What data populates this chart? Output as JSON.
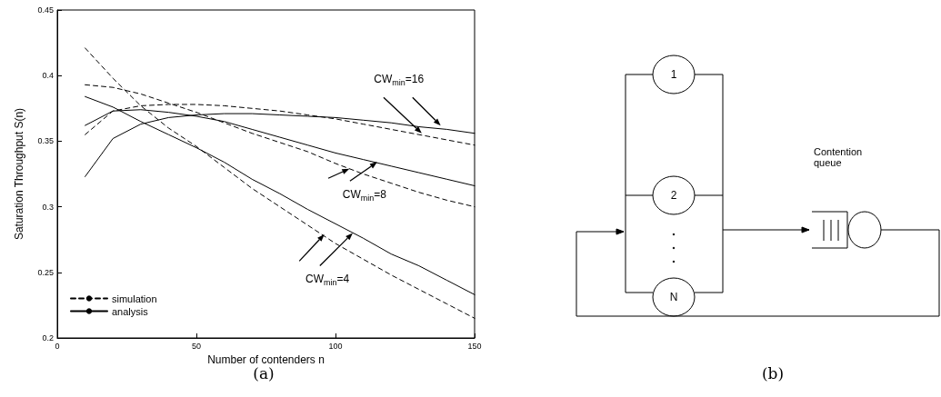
{
  "chart_data": [
    {
      "type": "line",
      "xlabel": "Number of contenders n",
      "ylabel": "Saturation Throughput S(n)",
      "x": [
        10,
        20,
        30,
        40,
        50,
        60,
        70,
        80,
        90,
        100,
        110,
        120,
        130,
        140,
        150
      ],
      "series": [
        {
          "name": "simulation",
          "color": "#000000",
          "line_style": "dashed",
          "values": [
            0.421,
            0.398,
            0.377,
            0.36,
            0.346,
            0.33,
            0.314,
            0.3,
            0.286,
            0.272,
            0.26,
            0.248,
            0.237,
            0.226,
            0.215
          ]
        },
        {
          "name": "analysis",
          "color": "#000000",
          "line_style": "solid",
          "values": [
            0.384,
            0.376,
            0.365,
            0.355,
            0.345,
            0.334,
            0.321,
            0.31,
            0.298,
            0.287,
            0.276,
            0.264,
            0.255,
            0.244,
            0.233
          ]
        },
        {
          "color": "#000000",
          "line_style": "dashed",
          "values": [
            0.393,
            0.391,
            0.386,
            0.379,
            0.372,
            0.364,
            0.356,
            0.349,
            0.342,
            0.333,
            0.325,
            0.318,
            0.311,
            0.305,
            0.3
          ]
        },
        {
          "color": "#000000",
          "line_style": "solid",
          "values": [
            0.362,
            0.373,
            0.374,
            0.372,
            0.369,
            0.365,
            0.359,
            0.353,
            0.347,
            0.341,
            0.336,
            0.331,
            0.326,
            0.321,
            0.316
          ]
        },
        {
          "color": "#000000",
          "line_style": "dashed",
          "values": [
            0.355,
            0.373,
            0.377,
            0.378,
            0.378,
            0.377,
            0.375,
            0.373,
            0.37,
            0.367,
            0.363,
            0.359,
            0.355,
            0.351,
            0.347
          ]
        },
        {
          "color": "#000000",
          "line_style": "solid",
          "values": [
            0.323,
            0.352,
            0.363,
            0.368,
            0.37,
            0.371,
            0.371,
            0.37,
            0.369,
            0.368,
            0.366,
            0.364,
            0.361,
            0.359,
            0.356
          ]
        }
      ],
      "xlim": [
        0,
        150
      ],
      "xticks": [
        0,
        50,
        100,
        150
      ],
      "ylim": [
        0.2,
        0.45
      ],
      "yticks": [
        0.2,
        0.25,
        0.3,
        0.35,
        0.4,
        0.45
      ],
      "grid": false,
      "legend": "bottom left",
      "marker": "none",
      "annotations": [
        {
          "text": "CW$_{min}$=16",
          "x": 131,
          "y": 0.356
        },
        {
          "text": "CW$_{min}$=8",
          "x": 105,
          "y": 0.329
        },
        {
          "text": "CW$_{min}$=4",
          "x": 96,
          "y": 0.279
        },
        "(a)"
      ]
    },
    {
      "type": "other",
      "annotations": [
        "1",
        "2",
        "N",
        "Contention queue",
        "(b)"
      ]
    }
  ]
}
